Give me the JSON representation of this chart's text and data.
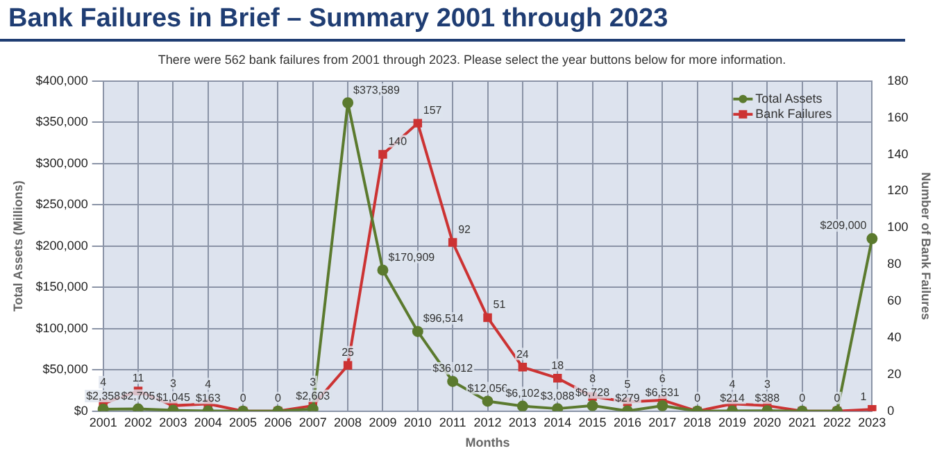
{
  "chart_data": {
    "type": "line",
    "title": "Bank Failures in Brief – Summary 2001 through 2023",
    "subtitle": "There were 562 bank failures from 2001 through 2023. Please select the year buttons below for more information.",
    "xlabel": "Months",
    "ylabel": "Total Assets (Millions)",
    "y2label": "Number of Bank Failures",
    "categories": [
      "2001",
      "2002",
      "2003",
      "2004",
      "2005",
      "2006",
      "2007",
      "2008",
      "2009",
      "2010",
      "2011",
      "2012",
      "2013",
      "2014",
      "2015",
      "2016",
      "2017",
      "2018",
      "2019",
      "2020",
      "2021",
      "2022",
      "2023"
    ],
    "series": [
      {
        "name": "Total Assets",
        "color": "#5b7a2e",
        "values": [
          2358,
          2705,
          1045,
          163,
          0,
          0,
          2603,
          373589,
          170909,
          96514,
          36012,
          12056,
          6102,
          3088,
          6728,
          279,
          6531,
          0,
          214,
          388,
          0,
          0,
          209000
        ],
        "value_labels": [
          "$2,358",
          "$2,705",
          "$1,045",
          "$163",
          null,
          null,
          "$2,603",
          "$373,589",
          "$170,909",
          "$96,514",
          "$36,012",
          "$12,056",
          "$6,102",
          "$3,088",
          "$6,728",
          "$279",
          "$6,531",
          null,
          "$214",
          "$388",
          null,
          null,
          "$209,000"
        ]
      },
      {
        "name": "Bank Failures",
        "color": "#cc3333",
        "axis": "y2",
        "marker": "square",
        "values": [
          4,
          11,
          3,
          4,
          0,
          0,
          3,
          25,
          140,
          157,
          92,
          51,
          24,
          18,
          8,
          5,
          6,
          0,
          4,
          3,
          0,
          0,
          1
        ],
        "value_labels": [
          "4",
          "11",
          "3",
          "4",
          "0",
          "0",
          "3",
          "25",
          "140",
          "157",
          "92",
          "51",
          "24",
          "18",
          "8",
          "5",
          "6",
          "0",
          "4",
          "3",
          "0",
          "0",
          "1"
        ]
      }
    ],
    "marker": "circle",
    "ylim": [
      0,
      400000
    ],
    "yticks": [
      {
        "value": 0,
        "label": "$0"
      },
      {
        "value": 50000,
        "label": "$50,000"
      },
      {
        "value": 100000,
        "label": "$100,000"
      },
      {
        "value": 150000,
        "label": "$150,000"
      },
      {
        "value": 200000,
        "label": "$200,000"
      },
      {
        "value": 250000,
        "label": "$250,000"
      },
      {
        "value": 300000,
        "label": "$300,000"
      },
      {
        "value": 350000,
        "label": "$350,000"
      },
      {
        "value": 400000,
        "label": "$400,000"
      }
    ],
    "y2lim": [
      0,
      180
    ],
    "y2ticks": [
      0,
      20,
      40,
      60,
      80,
      100,
      120,
      140,
      160,
      180
    ],
    "grid": true,
    "legend": "top right"
  }
}
